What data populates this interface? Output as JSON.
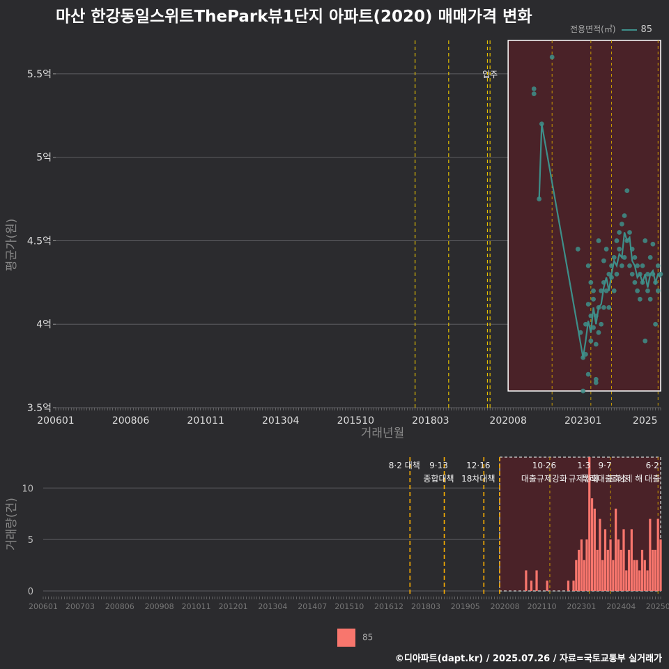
{
  "title": "마산 한강동일스위트ThePark뷰1단지 아파트(2020) 매매가격 변화",
  "legend_top": {
    "title": "전용면적(㎡)",
    "label": "85",
    "color": "#3e8f8a"
  },
  "legend_bottom": {
    "label": "85",
    "color": "#f8766d"
  },
  "source": "©디아파트(dapt.kr) / 2025.07.26 / 자료=국토교통부 실거래가",
  "chart_data": [
    {
      "type": "scatter",
      "title": "마산 한강동일스위트ThePark뷰1단지 아파트(2020) 매매가격 변화",
      "xlabel": "거래년월",
      "ylabel": "평균가(원)",
      "ylim": [
        3.5,
        5.7
      ],
      "y_ticks": [
        {
          "value": 3.5,
          "label": "3.5억"
        },
        {
          "value": 4.0,
          "label": "4억"
        },
        {
          "value": 4.5,
          "label": "4.5억"
        },
        {
          "value": 5.0,
          "label": "5억"
        },
        {
          "value": 5.5,
          "label": "5.5억"
        }
      ],
      "x_ticks": [
        {
          "month": 0,
          "label": "200601"
        },
        {
          "month": 29,
          "label": "200806"
        },
        {
          "month": 58,
          "label": "201011"
        },
        {
          "month": 87,
          "label": "201304"
        },
        {
          "month": 116,
          "label": "201510"
        },
        {
          "month": 145,
          "label": "201803"
        },
        {
          "month": 175,
          "label": "202008"
        },
        {
          "month": 204,
          "label": "202301"
        },
        {
          "month": 228,
          "label": "2025"
        }
      ],
      "x_range_months": [
        0,
        234
      ],
      "policy_lines": [
        139,
        152,
        167,
        168,
        192,
        207,
        215,
        233
      ],
      "move_in": {
        "month": 168,
        "label": "입주"
      },
      "highlight": {
        "start_month": 175,
        "end_month": 234,
        "ymin": 3.6,
        "ymax": 5.7
      },
      "series": [
        {
          "name": "85",
          "color": "#3e8f8a",
          "points": [
            [
              185,
              5.41
            ],
            [
              185,
              5.38
            ],
            [
              187,
              4.75
            ],
            [
              188,
              5.2
            ],
            [
              192,
              5.6
            ],
            [
              202,
              4.45
            ],
            [
              203,
              3.95
            ],
            [
              204,
              3.8
            ],
            [
              204,
              3.6
            ],
            [
              205,
              3.82
            ],
            [
              205,
              4.0
            ],
            [
              206,
              4.12
            ],
            [
              206,
              4.35
            ],
            [
              206,
              3.7
            ],
            [
              207,
              3.9
            ],
            [
              207,
              4.05
            ],
            [
              207,
              4.25
            ],
            [
              208,
              3.98
            ],
            [
              208,
              4.15
            ],
            [
              208,
              4.2
            ],
            [
              209,
              3.88
            ],
            [
              209,
              4.05
            ],
            [
              209,
              3.67
            ],
            [
              209,
              3.65
            ],
            [
              210,
              4.1
            ],
            [
              210,
              4.5
            ],
            [
              210,
              3.95
            ],
            [
              211,
              4.0
            ],
            [
              211,
              4.2
            ],
            [
              212,
              4.25
            ],
            [
              212,
              4.38
            ],
            [
              212,
              4.1
            ],
            [
              213,
              4.45
            ],
            [
              213,
              4.2
            ],
            [
              214,
              4.3
            ],
            [
              214,
              4.1
            ],
            [
              215,
              4.28
            ],
            [
              215,
              4.35
            ],
            [
              216,
              4.4
            ],
            [
              216,
              4.2
            ],
            [
              217,
              4.3
            ],
            [
              217,
              4.5
            ],
            [
              218,
              4.45
            ],
            [
              218,
              4.55
            ],
            [
              219,
              4.6
            ],
            [
              219,
              4.35
            ],
            [
              220,
              4.65
            ],
            [
              220,
              4.4
            ],
            [
              221,
              4.8
            ],
            [
              221,
              4.5
            ],
            [
              222,
              4.55
            ],
            [
              222,
              4.35
            ],
            [
              223,
              4.45
            ],
            [
              223,
              4.3
            ],
            [
              224,
              4.4
            ],
            [
              224,
              4.25
            ],
            [
              225,
              4.2
            ],
            [
              225,
              4.35
            ],
            [
              226,
              4.3
            ],
            [
              226,
              4.15
            ],
            [
              227,
              4.35
            ],
            [
              227,
              4.25
            ],
            [
              228,
              3.9
            ],
            [
              228,
              4.5
            ],
            [
              229,
              4.3
            ],
            [
              229,
              4.2
            ],
            [
              230,
              4.15
            ],
            [
              230,
              4.4
            ],
            [
              231,
              4.48
            ],
            [
              231,
              4.3
            ],
            [
              232,
              4.25
            ],
            [
              232,
              4.0
            ],
            [
              233,
              4.2
            ],
            [
              233,
              4.35
            ],
            [
              234,
              4.3
            ]
          ],
          "trend": [
            [
              187,
              4.75
            ],
            [
              188,
              5.2
            ],
            [
              204,
              3.8
            ],
            [
              205,
              3.9
            ],
            [
              206,
              4.02
            ],
            [
              207,
              3.95
            ],
            [
              208,
              4.1
            ],
            [
              209,
              4.0
            ],
            [
              210,
              4.1
            ],
            [
              211,
              4.12
            ],
            [
              212,
              4.22
            ],
            [
              213,
              4.28
            ],
            [
              214,
              4.2
            ],
            [
              215,
              4.3
            ],
            [
              216,
              4.38
            ],
            [
              217,
              4.35
            ],
            [
              218,
              4.42
            ],
            [
              219,
              4.4
            ],
            [
              220,
              4.55
            ],
            [
              221,
              4.5
            ],
            [
              222,
              4.52
            ],
            [
              223,
              4.38
            ],
            [
              224,
              4.35
            ],
            [
              225,
              4.28
            ],
            [
              226,
              4.3
            ],
            [
              227,
              4.25
            ],
            [
              228,
              4.3
            ],
            [
              229,
              4.22
            ],
            [
              230,
              4.3
            ],
            [
              231,
              4.32
            ],
            [
              232,
              4.25
            ],
            [
              233,
              4.3
            ],
            [
              234,
              4.28
            ]
          ]
        }
      ]
    },
    {
      "type": "bar",
      "ylabel": "거래량(건)",
      "ylim": [
        0,
        13
      ],
      "y_ticks": [
        {
          "value": 0,
          "label": "0"
        },
        {
          "value": 5,
          "label": "5"
        },
        {
          "value": 10,
          "label": "10"
        }
      ],
      "x_ticks": [
        {
          "month": 0,
          "label": "200601"
        },
        {
          "month": 14,
          "label": "200703"
        },
        {
          "month": 29,
          "label": "200806"
        },
        {
          "month": 44,
          "label": "200908"
        },
        {
          "month": 58,
          "label": "201011"
        },
        {
          "month": 72,
          "label": "201201"
        },
        {
          "month": 87,
          "label": "201304"
        },
        {
          "month": 102,
          "label": "201407"
        },
        {
          "month": 116,
          "label": "201510"
        },
        {
          "month": 131,
          "label": "201612"
        },
        {
          "month": 145,
          "label": "201803"
        },
        {
          "month": 160,
          "label": "201905"
        },
        {
          "month": 175,
          "label": "202008"
        },
        {
          "month": 189,
          "label": "202110"
        },
        {
          "month": 204,
          "label": "202301"
        },
        {
          "month": 219,
          "label": "202404"
        },
        {
          "month": 233,
          "label": "20250"
        }
      ],
      "x_range_months": [
        0,
        234
      ],
      "policy_lines": [
        139,
        152,
        167,
        173,
        192,
        207,
        215,
        233
      ],
      "highlight": {
        "start_month": 173,
        "end_month": 234,
        "ymin": 0,
        "ymax": 13
      },
      "annotations": [
        {
          "month": 139,
          "line1": "8·2 대책",
          "line2": ""
        },
        {
          "month": 152,
          "line1": "9·13",
          "line2": "종합대책"
        },
        {
          "month": 167,
          "line1": "12·16",
          "line2": "18차대책"
        },
        {
          "month": 192,
          "line1": "10·26",
          "line2": "대출규제강화"
        },
        {
          "month": 207,
          "line1": "1·3",
          "line2": "규제완화"
        },
        {
          "month": 215,
          "line1": "9·7",
          "line2": "특례대출축소"
        },
        {
          "month": 223,
          "line1": "",
          "line2": "토허제 해"
        },
        {
          "month": 233,
          "line1": "6·2",
          "line2": "대출"
        }
      ],
      "series": [
        {
          "name": "85",
          "color": "#f8766d",
          "values_by_month": [
            [
              183,
              2
            ],
            [
              185,
              1
            ],
            [
              187,
              2
            ],
            [
              191,
              1
            ],
            [
              199,
              1
            ],
            [
              201,
              1
            ],
            [
              202,
              3
            ],
            [
              203,
              4
            ],
            [
              204,
              5
            ],
            [
              205,
              3
            ],
            [
              206,
              5
            ],
            [
              207,
              13
            ],
            [
              208,
              9
            ],
            [
              209,
              8
            ],
            [
              210,
              4
            ],
            [
              211,
              7
            ],
            [
              212,
              3
            ],
            [
              213,
              6
            ],
            [
              214,
              4
            ],
            [
              215,
              5
            ],
            [
              216,
              3
            ],
            [
              217,
              8
            ],
            [
              218,
              5
            ],
            [
              219,
              4
            ],
            [
              220,
              6
            ],
            [
              221,
              2
            ],
            [
              222,
              4
            ],
            [
              223,
              6
            ],
            [
              224,
              3
            ],
            [
              225,
              3
            ],
            [
              226,
              2
            ],
            [
              227,
              4
            ],
            [
              228,
              3
            ],
            [
              229,
              2
            ],
            [
              230,
              7
            ],
            [
              231,
              4
            ],
            [
              232,
              4
            ],
            [
              233,
              7
            ],
            [
              234,
              5
            ]
          ]
        }
      ]
    }
  ]
}
